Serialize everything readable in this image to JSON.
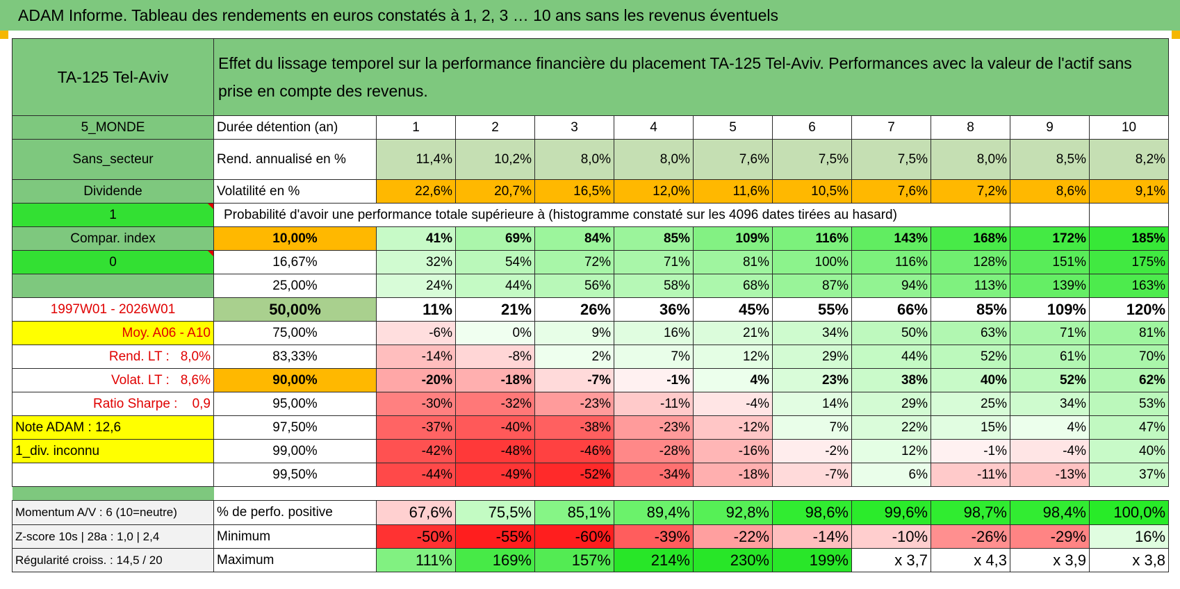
{
  "banner": "ADAM Informe. Tableau des rendements en euros constatés à 1, 2, 3 … 10 ans sans les revenus éventuels",
  "asset": "TA-125 Tel-Aviv",
  "description": "Effet du lissage temporel sur la performance financière du placement TA-125 Tel-Aviv. Performances avec la valeur de l'actif sans prise en compte des revenus.",
  "side": {
    "zone": "5_MONDE",
    "secteur": "Sans_secteur",
    "type": "Dividende",
    "flag1": "1",
    "compar": "Compar. index",
    "flag2": "0",
    "periode": "1997W01 - 2026W01",
    "moy": "Moy. A06 - A10",
    "rend_lt_label": "Rend. LT :",
    "rend_lt_value": "8,0%",
    "volat_lt_label": "Volat. LT :",
    "volat_lt_value": "8,6%",
    "sharpe_label": "Ratio Sharpe :",
    "sharpe_value": "0,9",
    "note": "Note ADAM : 12,6",
    "div": "1_div. inconnu",
    "momentum": "Momentum A/V : 6 (10=neutre)",
    "zscore": "Z-score 10s | 28a : 1,0 | 2,4",
    "regularite": "Régularité croiss. : 14,5 / 20"
  },
  "labels": {
    "duree": "Durée détention (an)",
    "rend": "Rend. annualisé en %",
    "vol": "Volatilité en %",
    "proba": "Probabilité d'avoir une performance totale supérieure à (histogramme constaté sur les 4096 dates tirées au hasard)",
    "pos": "% de perfo. positive",
    "min": "Minimum",
    "max": "Maximum"
  },
  "years": [
    "1",
    "2",
    "3",
    "4",
    "5",
    "6",
    "7",
    "8",
    "9",
    "10"
  ],
  "rend": [
    "11,4%",
    "10,2%",
    "8,0%",
    "8,0%",
    "7,6%",
    "7,5%",
    "7,5%",
    "8,0%",
    "8,5%",
    "8,2%"
  ],
  "vol": [
    "22,6%",
    "20,7%",
    "16,5%",
    "12,0%",
    "11,6%",
    "10,5%",
    "7,6%",
    "7,2%",
    "8,6%",
    "9,1%"
  ],
  "probs": [
    {
      "p": "10,00%",
      "v": [
        "41%",
        "69%",
        "84%",
        "85%",
        "109%",
        "116%",
        "143%",
        "168%",
        "172%",
        "185%"
      ]
    },
    {
      "p": "16,67%",
      "v": [
        "32%",
        "54%",
        "72%",
        "71%",
        "81%",
        "100%",
        "116%",
        "128%",
        "151%",
        "175%"
      ]
    },
    {
      "p": "25,00%",
      "v": [
        "24%",
        "44%",
        "56%",
        "58%",
        "68%",
        "87%",
        "94%",
        "113%",
        "139%",
        "163%"
      ]
    },
    {
      "p": "50,00%",
      "v": [
        "11%",
        "21%",
        "26%",
        "36%",
        "45%",
        "55%",
        "66%",
        "85%",
        "109%",
        "120%"
      ]
    },
    {
      "p": "75,00%",
      "v": [
        "-6%",
        "0%",
        "9%",
        "16%",
        "21%",
        "34%",
        "50%",
        "63%",
        "71%",
        "81%"
      ]
    },
    {
      "p": "83,33%",
      "v": [
        "-14%",
        "-8%",
        "2%",
        "7%",
        "12%",
        "29%",
        "44%",
        "52%",
        "61%",
        "70%"
      ]
    },
    {
      "p": "90,00%",
      "v": [
        "-20%",
        "-18%",
        "-7%",
        "-1%",
        "4%",
        "23%",
        "38%",
        "40%",
        "52%",
        "62%"
      ]
    },
    {
      "p": "95,00%",
      "v": [
        "-30%",
        "-32%",
        "-23%",
        "-11%",
        "-4%",
        "14%",
        "29%",
        "25%",
        "34%",
        "53%"
      ]
    },
    {
      "p": "97,50%",
      "v": [
        "-37%",
        "-40%",
        "-38%",
        "-23%",
        "-12%",
        "7%",
        "22%",
        "15%",
        "4%",
        "47%"
      ]
    },
    {
      "p": "99,00%",
      "v": [
        "-42%",
        "-48%",
        "-46%",
        "-28%",
        "-16%",
        "-2%",
        "12%",
        "-1%",
        "-4%",
        "40%"
      ]
    },
    {
      "p": "99,50%",
      "v": [
        "-44%",
        "-49%",
        "-52%",
        "-34%",
        "-18%",
        "-7%",
        "6%",
        "-11%",
        "-13%",
        "37%"
      ]
    }
  ],
  "pos": [
    "67,6%",
    "75,5%",
    "85,1%",
    "89,4%",
    "92,8%",
    "98,6%",
    "99,6%",
    "98,7%",
    "98,4%",
    "100,0%"
  ],
  "min": [
    "-50%",
    "-55%",
    "-60%",
    "-39%",
    "-22%",
    "-14%",
    "-10%",
    "-26%",
    "-29%",
    "16%"
  ],
  "max": [
    "111%",
    "169%",
    "157%",
    "214%",
    "230%",
    "199%",
    "x 3,7",
    "x 4,3",
    "x 3,9",
    "x 3,8"
  ],
  "colors": {
    "green_header": "#7ec87e",
    "bright_green": "#33e033",
    "yellow": "#ffff00",
    "orange": "#ffb800",
    "light_green": "#c5dfb3",
    "red_text": "#e00000"
  }
}
